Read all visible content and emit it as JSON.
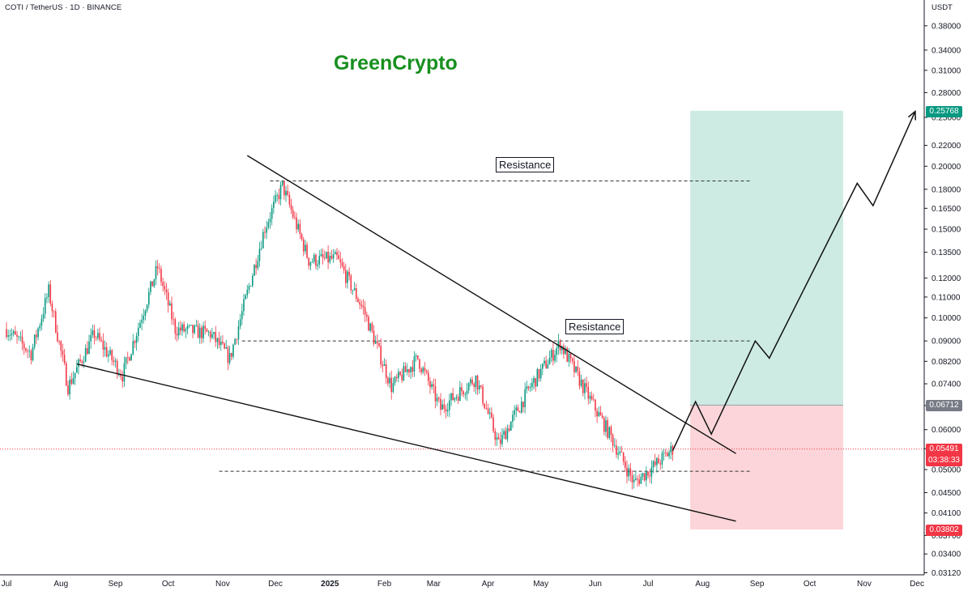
{
  "header": {
    "symbol": "COTI / TetherUS · 1D · BINANCE",
    "currency": "USDT"
  },
  "brand": "GreenCrypto",
  "annotations": {
    "resistance_upper": "Resistance",
    "resistance_lower": "Resistance"
  },
  "price_tags": {
    "target": {
      "value": "0.25768",
      "color": "#089981"
    },
    "entry": {
      "value": "0.06712",
      "color": "#787b86"
    },
    "last": {
      "value": "0.05491",
      "countdown": "03:38:33",
      "color": "#f23645"
    },
    "stop": {
      "value": "0.03802",
      "color": "#f23645"
    }
  },
  "colors": {
    "up": "#089981",
    "down": "#f23645",
    "profit_zone": "#cdebe3",
    "loss_zone": "#fbd5d9"
  },
  "chart_data": {
    "type": "candlestick",
    "y_scale": "log",
    "ylim": [
      0.0305,
      0.43
    ],
    "y_ticks": [
      "0.38000",
      "0.34000",
      "0.31000",
      "0.28000",
      "0.25000",
      "0.22000",
      "0.20000",
      "0.18000",
      "0.16500",
      "0.15000",
      "0.13500",
      "0.12000",
      "0.11000",
      "0.10000",
      "0.09000",
      "0.08200",
      "0.07400",
      "0.06700",
      "0.06000",
      "0.05500",
      "0.05000",
      "0.04500",
      "0.04100",
      "0.03700",
      "0.03400",
      "0.03120"
    ],
    "x_ticks": [
      "Jul",
      "Aug",
      "Sep",
      "Oct",
      "Nov",
      "Dec",
      "2025",
      "Feb",
      "Mar",
      "Apr",
      "May",
      "Jun",
      "Jul",
      "Aug",
      "Sep",
      "Oct",
      "Nov",
      "Dec"
    ],
    "price_path": [
      {
        "date": "2024-07-01",
        "price": 0.095
      },
      {
        "date": "2024-07-15",
        "price": 0.085
      },
      {
        "date": "2024-07-25",
        "price": 0.113
      },
      {
        "date": "2024-08-05",
        "price": 0.073
      },
      {
        "date": "2024-08-20",
        "price": 0.093
      },
      {
        "date": "2024-09-05",
        "price": 0.077
      },
      {
        "date": "2024-09-25",
        "price": 0.126
      },
      {
        "date": "2024-10-05",
        "price": 0.095
      },
      {
        "date": "2024-10-25",
        "price": 0.093
      },
      {
        "date": "2024-11-05",
        "price": 0.083
      },
      {
        "date": "2024-11-25",
        "price": 0.151
      },
      {
        "date": "2024-12-05",
        "price": 0.183
      },
      {
        "date": "2024-12-20",
        "price": 0.13
      },
      {
        "date": "2025-01-05",
        "price": 0.131
      },
      {
        "date": "2025-01-20",
        "price": 0.104
      },
      {
        "date": "2025-02-05",
        "price": 0.073
      },
      {
        "date": "2025-02-20",
        "price": 0.083
      },
      {
        "date": "2025-03-05",
        "price": 0.066
      },
      {
        "date": "2025-03-25",
        "price": 0.076
      },
      {
        "date": "2025-04-07",
        "price": 0.056
      },
      {
        "date": "2025-04-25",
        "price": 0.073
      },
      {
        "date": "2025-05-12",
        "price": 0.089
      },
      {
        "date": "2025-05-25",
        "price": 0.073
      },
      {
        "date": "2025-06-10",
        "price": 0.058
      },
      {
        "date": "2025-06-23",
        "price": 0.047
      },
      {
        "date": "2025-07-05",
        "price": 0.051
      },
      {
        "date": "2025-07-15",
        "price": 0.0549
      }
    ],
    "wedge_upper": [
      {
        "date": "2024-11-15",
        "price": 0.21
      },
      {
        "date": "2025-08-20",
        "price": 0.0538
      }
    ],
    "wedge_lower": [
      {
        "date": "2024-08-10",
        "price": 0.081
      },
      {
        "date": "2025-08-20",
        "price": 0.0395
      }
    ],
    "resistance_levels": [
      0.187,
      0.09
    ],
    "support_level": 0.0496,
    "projection": [
      {
        "date": "2025-07-15",
        "price": 0.0545
      },
      {
        "date": "2025-07-28",
        "price": 0.0682
      },
      {
        "date": "2025-08-06",
        "price": 0.0588
      },
      {
        "date": "2025-08-31",
        "price": 0.09
      },
      {
        "date": "2025-09-08",
        "price": 0.0832
      },
      {
        "date": "2025-10-28",
        "price": 0.185
      },
      {
        "date": "2025-11-06",
        "price": 0.167
      },
      {
        "date": "2025-11-30",
        "price": 0.257
      }
    ],
    "position": {
      "entry": 0.06712,
      "target": 0.25768,
      "stop": 0.03802,
      "start": "2025-07-25",
      "end": "2025-10-20"
    }
  }
}
